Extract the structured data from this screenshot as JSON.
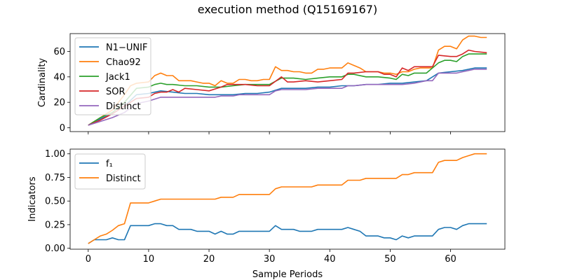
{
  "title": "execution method (Q15169167)",
  "chart_data": [
    {
      "type": "line",
      "ylabel": "Cardinality",
      "xlabel": "",
      "xlim": [
        -3,
        69
      ],
      "ylim": [
        -3,
        74
      ],
      "xticks": [
        0,
        10,
        20,
        30,
        40,
        50,
        60
      ],
      "yticks": [
        0,
        20,
        40,
        60
      ],
      "x_tick_labels_visible": false,
      "legend": "top-left",
      "series": [
        {
          "name": "N1−UNIF",
          "color": "#1f77b4",
          "x": [
            0,
            2,
            4,
            6,
            8,
            10,
            12,
            14,
            16,
            18,
            20,
            22,
            24,
            26,
            28,
            30,
            32,
            34,
            36,
            38,
            40,
            42,
            44,
            46,
            48,
            50,
            52,
            54,
            56,
            58,
            60,
            62,
            64,
            66
          ],
          "y": [
            2,
            7,
            11,
            17,
            26,
            27,
            29,
            28,
            27,
            27,
            26,
            26,
            26,
            27,
            27,
            28,
            31,
            31,
            31,
            32,
            32,
            33,
            33,
            34,
            34,
            35,
            35,
            36,
            37,
            43,
            44,
            45,
            47,
            47
          ]
        },
        {
          "name": "Chao92",
          "color": "#ff7f0e",
          "x": [
            0,
            2,
            4,
            6,
            7,
            8,
            10,
            11,
            12,
            13,
            14,
            15,
            16,
            17,
            18,
            19,
            20,
            21,
            22,
            23,
            24,
            25,
            26,
            27,
            28,
            29,
            30,
            31,
            32,
            33,
            34,
            35,
            36,
            37,
            38,
            39,
            40,
            41,
            42,
            43,
            44,
            45,
            46,
            47,
            48,
            49,
            50,
            51,
            52,
            53,
            54,
            55,
            56,
            57,
            58,
            59,
            60,
            61,
            62,
            63,
            64,
            65,
            66
          ],
          "y": [
            2,
            8,
            14,
            26,
            33,
            35,
            36,
            41,
            43,
            41,
            41,
            37,
            37,
            37,
            36,
            35,
            35,
            33,
            37,
            35,
            35,
            38,
            38,
            37,
            37,
            38,
            38,
            48,
            45,
            45,
            44,
            44,
            43,
            43,
            46,
            46,
            47,
            47,
            47,
            51,
            49,
            47,
            44,
            44,
            44,
            43,
            43,
            42,
            44,
            44,
            46,
            47,
            47,
            47,
            61,
            64,
            64,
            62,
            69,
            72,
            72,
            71,
            71
          ]
        },
        {
          "name": "Jack1",
          "color": "#2ca02c",
          "x": [
            0,
            2,
            4,
            6,
            8,
            10,
            11,
            12,
            13,
            14,
            16,
            18,
            20,
            22,
            24,
            26,
            28,
            30,
            32,
            34,
            36,
            38,
            40,
            42,
            43,
            44,
            46,
            48,
            50,
            51,
            52,
            53,
            54,
            56,
            58,
            59,
            60,
            61,
            62,
            63,
            64,
            66
          ],
          "y": [
            2,
            8,
            12,
            20,
            31,
            32,
            34,
            35,
            34,
            34,
            33,
            33,
            32,
            32,
            33,
            34,
            34,
            34,
            39,
            39,
            38,
            39,
            40,
            40,
            42,
            42,
            40,
            40,
            39,
            38,
            42,
            41,
            43,
            43,
            51,
            53,
            53,
            52,
            56,
            58,
            58,
            58
          ]
        },
        {
          "name": "SOR",
          "color": "#d62728",
          "x": [
            0,
            2,
            4,
            6,
            8,
            10,
            11,
            12,
            13,
            14,
            15,
            16,
            18,
            20,
            22,
            23,
            24,
            26,
            28,
            30,
            32,
            33,
            34,
            36,
            38,
            40,
            42,
            43,
            44,
            46,
            48,
            49,
            50,
            51,
            52,
            53,
            54,
            55,
            56,
            57,
            58,
            60,
            61,
            62,
            63,
            64,
            66
          ],
          "y": [
            2,
            6,
            11,
            17,
            23,
            24,
            27,
            28,
            28,
            30,
            28,
            31,
            30,
            29,
            32,
            34,
            34,
            34,
            33,
            33,
            40,
            36,
            36,
            37,
            36,
            37,
            38,
            43,
            43,
            44,
            44,
            42,
            42,
            40,
            47,
            45,
            48,
            48,
            48,
            48,
            57,
            56,
            56,
            58,
            61,
            60,
            59
          ]
        },
        {
          "name": "Distinct",
          "color": "#9467bd",
          "x": [
            0,
            2,
            4,
            6,
            8,
            10,
            12,
            14,
            16,
            18,
            20,
            21,
            22,
            24,
            25,
            26,
            28,
            30,
            31,
            32,
            34,
            36,
            38,
            40,
            42,
            43,
            44,
            46,
            48,
            50,
            52,
            54,
            56,
            57,
            58,
            60,
            61,
            62,
            63,
            64,
            66
          ],
          "y": [
            2,
            5,
            8,
            12,
            19,
            21,
            24,
            24,
            24,
            24,
            24,
            24,
            25,
            25,
            26,
            26,
            26,
            26,
            29,
            30,
            30,
            30,
            31,
            31,
            31,
            33,
            33,
            34,
            34,
            34,
            34,
            35,
            37,
            37,
            43,
            43,
            43,
            44,
            45,
            46,
            46
          ]
        }
      ]
    },
    {
      "type": "line",
      "ylabel": "Indicators",
      "xlabel": "Sample Periods",
      "xlim": [
        -3,
        69
      ],
      "ylim": [
        -0.01,
        1.05
      ],
      "xticks": [
        0,
        10,
        20,
        30,
        40,
        50,
        60
      ],
      "yticks": [
        0.0,
        0.25,
        0.5,
        0.75,
        1.0
      ],
      "ytick_labels": [
        "0.00",
        "0.25",
        "0.50",
        "0.75",
        "1.00"
      ],
      "legend": "top-left",
      "series": [
        {
          "name": "f₁",
          "color": "#1f77b4",
          "x": [
            0,
            1,
            2,
            3,
            4,
            5,
            6,
            7,
            8,
            9,
            10,
            11,
            12,
            13,
            14,
            15,
            16,
            17,
            18,
            19,
            20,
            21,
            22,
            23,
            24,
            25,
            26,
            27,
            28,
            29,
            30,
            31,
            32,
            33,
            34,
            35,
            36,
            37,
            38,
            39,
            40,
            41,
            42,
            43,
            44,
            45,
            46,
            47,
            48,
            49,
            50,
            51,
            52,
            53,
            54,
            55,
            56,
            57,
            58,
            59,
            60,
            61,
            62,
            63,
            64,
            65,
            66
          ],
          "y": [
            0.05,
            0.09,
            0.09,
            0.09,
            0.11,
            0.09,
            0.09,
            0.24,
            0.24,
            0.24,
            0.24,
            0.26,
            0.26,
            0.24,
            0.24,
            0.2,
            0.2,
            0.2,
            0.18,
            0.18,
            0.18,
            0.15,
            0.18,
            0.15,
            0.15,
            0.18,
            0.18,
            0.18,
            0.18,
            0.18,
            0.18,
            0.24,
            0.2,
            0.2,
            0.2,
            0.18,
            0.18,
            0.18,
            0.2,
            0.2,
            0.2,
            0.2,
            0.2,
            0.22,
            0.2,
            0.18,
            0.13,
            0.13,
            0.13,
            0.11,
            0.11,
            0.09,
            0.13,
            0.11,
            0.13,
            0.13,
            0.13,
            0.13,
            0.2,
            0.22,
            0.22,
            0.2,
            0.24,
            0.26,
            0.26,
            0.26,
            0.26
          ]
        },
        {
          "name": "Distinct",
          "color": "#ff7f0e",
          "x": [
            0,
            1,
            2,
            3,
            4,
            5,
            6,
            7,
            8,
            9,
            10,
            11,
            12,
            13,
            14,
            15,
            16,
            17,
            18,
            19,
            20,
            21,
            22,
            23,
            24,
            25,
            26,
            27,
            28,
            29,
            30,
            31,
            32,
            33,
            34,
            35,
            36,
            37,
            38,
            39,
            40,
            41,
            42,
            43,
            44,
            45,
            46,
            47,
            48,
            49,
            50,
            51,
            52,
            53,
            54,
            55,
            56,
            57,
            58,
            59,
            60,
            61,
            62,
            63,
            64,
            65,
            66
          ],
          "y": [
            0.05,
            0.09,
            0.13,
            0.15,
            0.19,
            0.24,
            0.26,
            0.48,
            0.48,
            0.48,
            0.48,
            0.5,
            0.52,
            0.52,
            0.52,
            0.52,
            0.52,
            0.52,
            0.52,
            0.52,
            0.52,
            0.52,
            0.54,
            0.54,
            0.54,
            0.57,
            0.57,
            0.57,
            0.57,
            0.57,
            0.57,
            0.63,
            0.65,
            0.65,
            0.65,
            0.65,
            0.65,
            0.65,
            0.67,
            0.67,
            0.67,
            0.67,
            0.67,
            0.72,
            0.72,
            0.72,
            0.74,
            0.74,
            0.74,
            0.74,
            0.74,
            0.74,
            0.78,
            0.78,
            0.8,
            0.8,
            0.8,
            0.8,
            0.91,
            0.93,
            0.93,
            0.93,
            0.96,
            0.98,
            1.0,
            1.0,
            1.0
          ]
        }
      ]
    }
  ]
}
